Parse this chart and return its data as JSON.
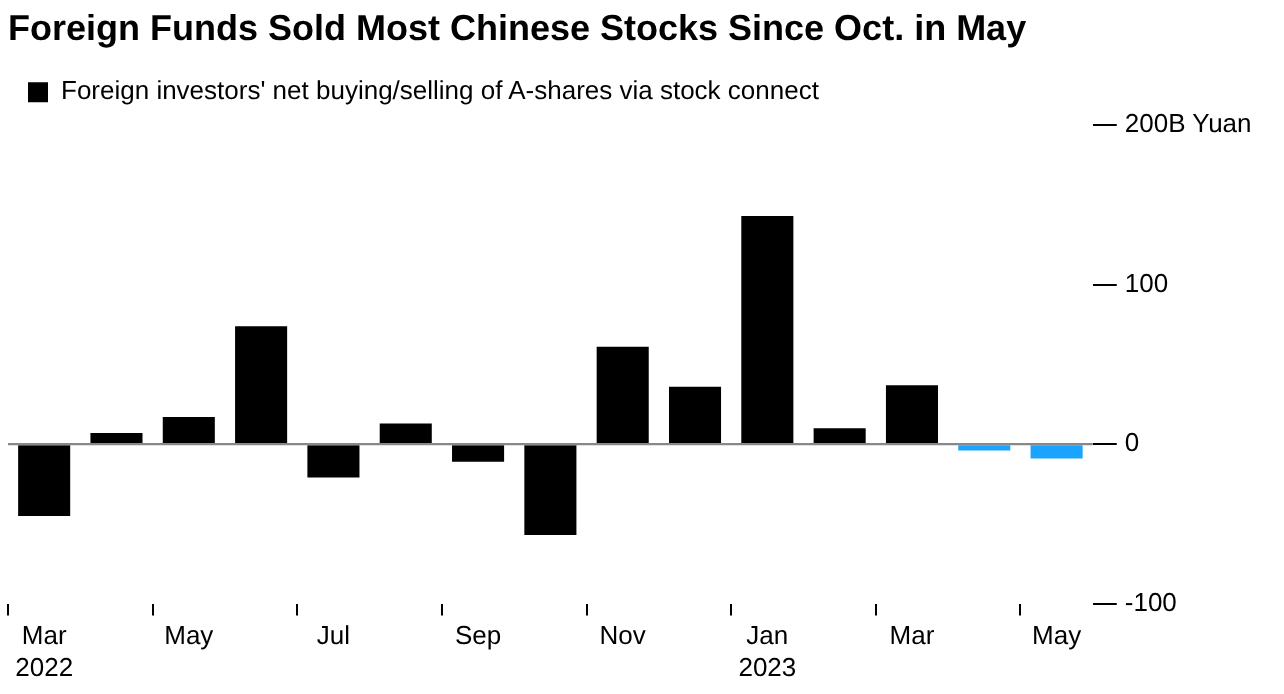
{
  "chart_data": {
    "type": "bar",
    "title": "Foreign Funds Sold Most Chinese Stocks Since Oct. in May",
    "categories": [
      "Mar\n2022",
      null,
      "May",
      null,
      "Jul",
      null,
      "Sep",
      null,
      "Nov",
      null,
      "Jan\n2023",
      null,
      "Mar",
      null,
      "May"
    ],
    "series": [
      {
        "name": "Foreign investors' net buying/selling of A-shares via stock connect",
        "color": "#000000",
        "colors": [
          "#000000",
          "#000000",
          "#000000",
          "#000000",
          "#000000",
          "#000000",
          "#000000",
          "#000000",
          "#000000",
          "#000000",
          "#000000",
          "#000000",
          "#000000",
          "#1aa3ff",
          "#1aa3ff"
        ],
        "values": [
          -45,
          7,
          17,
          74,
          -21,
          13,
          -11,
          -57,
          61,
          36,
          143,
          10,
          37,
          -4,
          -9
        ]
      }
    ],
    "ylim": [
      -100,
      200
    ],
    "yticks": [
      -100,
      0,
      100,
      {
        "value": 200,
        "label": "200B Yuan"
      }
    ],
    "ref_lines": [
      {
        "axis": "y",
        "value": 0,
        "color": "#888888"
      }
    ],
    "legend": "top left"
  }
}
